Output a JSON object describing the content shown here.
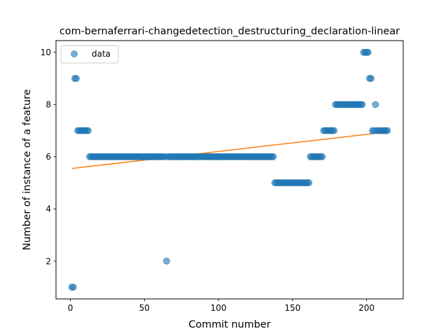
{
  "chart_data": {
    "type": "scatter",
    "title": "com-bernaferrari-changedetection_destructuring_declaration-linear",
    "xlabel": "Commit number",
    "ylabel": "Number of instance of a feature",
    "xlim": [
      -9.7,
      224.7
    ],
    "ylim": [
      0.55,
      10.45
    ],
    "xticks": [
      0,
      50,
      100,
      150,
      200
    ],
    "yticks": [
      2,
      4,
      6,
      8,
      10
    ],
    "grid": false,
    "legend": {
      "placement": "top-left",
      "entries": [
        "data"
      ]
    },
    "colors": {
      "points": "#1f77b4",
      "fit_line": "#ff7f0e"
    },
    "series": [
      {
        "name": "data",
        "points": [
          [
            1,
            1
          ],
          [
            2,
            1
          ],
          [
            3,
            9
          ],
          [
            4,
            9
          ],
          [
            5,
            7
          ],
          [
            6,
            7
          ],
          [
            7,
            7
          ],
          [
            8,
            7
          ],
          [
            9,
            7
          ],
          [
            10,
            7
          ],
          [
            11,
            7
          ],
          [
            12,
            7
          ],
          [
            13,
            6
          ],
          [
            14,
            6
          ],
          [
            15,
            6
          ],
          [
            16,
            6
          ],
          [
            17,
            6
          ],
          [
            18,
            6
          ],
          [
            19,
            6
          ],
          [
            20,
            6
          ],
          [
            21,
            6
          ],
          [
            22,
            6
          ],
          [
            23,
            6
          ],
          [
            24,
            6
          ],
          [
            25,
            6
          ],
          [
            26,
            6
          ],
          [
            27,
            6
          ],
          [
            28,
            6
          ],
          [
            29,
            6
          ],
          [
            30,
            6
          ],
          [
            31,
            6
          ],
          [
            32,
            6
          ],
          [
            33,
            6
          ],
          [
            34,
            6
          ],
          [
            35,
            6
          ],
          [
            36,
            6
          ],
          [
            37,
            6
          ],
          [
            38,
            6
          ],
          [
            39,
            6
          ],
          [
            40,
            6
          ],
          [
            41,
            6
          ],
          [
            42,
            6
          ],
          [
            43,
            6
          ],
          [
            44,
            6
          ],
          [
            45,
            6
          ],
          [
            46,
            6
          ],
          [
            47,
            6
          ],
          [
            48,
            6
          ],
          [
            49,
            6
          ],
          [
            50,
            6
          ],
          [
            51,
            6
          ],
          [
            52,
            6
          ],
          [
            53,
            6
          ],
          [
            54,
            6
          ],
          [
            55,
            6
          ],
          [
            56,
            6
          ],
          [
            57,
            6
          ],
          [
            58,
            6
          ],
          [
            59,
            6
          ],
          [
            60,
            6
          ],
          [
            61,
            6
          ],
          [
            62,
            6
          ],
          [
            63,
            6
          ],
          [
            64,
            6
          ],
          [
            65,
            2
          ],
          [
            66,
            6
          ],
          [
            67,
            6
          ],
          [
            68,
            6
          ],
          [
            69,
            6
          ],
          [
            70,
            6
          ],
          [
            71,
            6
          ],
          [
            72,
            6
          ],
          [
            73,
            6
          ],
          [
            74,
            6
          ],
          [
            75,
            6
          ],
          [
            76,
            6
          ],
          [
            77,
            6
          ],
          [
            78,
            6
          ],
          [
            79,
            6
          ],
          [
            80,
            6
          ],
          [
            81,
            6
          ],
          [
            82,
            6
          ],
          [
            83,
            6
          ],
          [
            84,
            6
          ],
          [
            85,
            6
          ],
          [
            86,
            6
          ],
          [
            87,
            6
          ],
          [
            88,
            6
          ],
          [
            89,
            6
          ],
          [
            90,
            6
          ],
          [
            91,
            6
          ],
          [
            92,
            6
          ],
          [
            93,
            6
          ],
          [
            94,
            6
          ],
          [
            95,
            6
          ],
          [
            96,
            6
          ],
          [
            97,
            6
          ],
          [
            98,
            6
          ],
          [
            99,
            6
          ],
          [
            100,
            6
          ],
          [
            101,
            6
          ],
          [
            102,
            6
          ],
          [
            103,
            6
          ],
          [
            104,
            6
          ],
          [
            105,
            6
          ],
          [
            106,
            6
          ],
          [
            107,
            6
          ],
          [
            108,
            6
          ],
          [
            109,
            6
          ],
          [
            110,
            6
          ],
          [
            111,
            6
          ],
          [
            112,
            6
          ],
          [
            113,
            6
          ],
          [
            114,
            6
          ],
          [
            115,
            6
          ],
          [
            116,
            6
          ],
          [
            117,
            6
          ],
          [
            118,
            6
          ],
          [
            119,
            6
          ],
          [
            120,
            6
          ],
          [
            121,
            6
          ],
          [
            122,
            6
          ],
          [
            123,
            6
          ],
          [
            124,
            6
          ],
          [
            125,
            6
          ],
          [
            126,
            6
          ],
          [
            127,
            6
          ],
          [
            128,
            6
          ],
          [
            129,
            6
          ],
          [
            130,
            6
          ],
          [
            131,
            6
          ],
          [
            132,
            6
          ],
          [
            133,
            6
          ],
          [
            134,
            6
          ],
          [
            135,
            6
          ],
          [
            136,
            6
          ],
          [
            137,
            6
          ],
          [
            138,
            5
          ],
          [
            139,
            5
          ],
          [
            140,
            5
          ],
          [
            141,
            5
          ],
          [
            142,
            5
          ],
          [
            143,
            5
          ],
          [
            144,
            5
          ],
          [
            145,
            5
          ],
          [
            146,
            5
          ],
          [
            147,
            5
          ],
          [
            148,
            5
          ],
          [
            149,
            5
          ],
          [
            150,
            5
          ],
          [
            151,
            5
          ],
          [
            152,
            5
          ],
          [
            153,
            5
          ],
          [
            154,
            5
          ],
          [
            155,
            5
          ],
          [
            156,
            5
          ],
          [
            157,
            5
          ],
          [
            158,
            5
          ],
          [
            159,
            5
          ],
          [
            160,
            5
          ],
          [
            161,
            5
          ],
          [
            162,
            6
          ],
          [
            163,
            6
          ],
          [
            164,
            6
          ],
          [
            165,
            6
          ],
          [
            166,
            6
          ],
          [
            167,
            6
          ],
          [
            168,
            6
          ],
          [
            169,
            6
          ],
          [
            170,
            6
          ],
          [
            171,
            7
          ],
          [
            172,
            7
          ],
          [
            173,
            7
          ],
          [
            174,
            7
          ],
          [
            175,
            7
          ],
          [
            176,
            7
          ],
          [
            177,
            7
          ],
          [
            178,
            7
          ],
          [
            179,
            8
          ],
          [
            180,
            8
          ],
          [
            181,
            8
          ],
          [
            182,
            8
          ],
          [
            183,
            8
          ],
          [
            184,
            8
          ],
          [
            185,
            8
          ],
          [
            186,
            8
          ],
          [
            187,
            8
          ],
          [
            188,
            8
          ],
          [
            189,
            8
          ],
          [
            190,
            8
          ],
          [
            191,
            8
          ],
          [
            192,
            8
          ],
          [
            193,
            8
          ],
          [
            194,
            8
          ],
          [
            195,
            8
          ],
          [
            196,
            8
          ],
          [
            197,
            8
          ],
          [
            198,
            10
          ],
          [
            199,
            10
          ],
          [
            200,
            10
          ],
          [
            201,
            10
          ],
          [
            202,
            9
          ],
          [
            203,
            9
          ],
          [
            204,
            7
          ],
          [
            205,
            7
          ],
          [
            206,
            8
          ],
          [
            207,
            7
          ],
          [
            208,
            7
          ],
          [
            209,
            7
          ],
          [
            210,
            7
          ],
          [
            211,
            7
          ],
          [
            212,
            7
          ],
          [
            213,
            7
          ],
          [
            214,
            7
          ]
        ]
      },
      {
        "name": "",
        "type": "line",
        "points": [
          [
            1,
            5.55
          ],
          [
            214,
            6.95
          ]
        ]
      }
    ]
  }
}
